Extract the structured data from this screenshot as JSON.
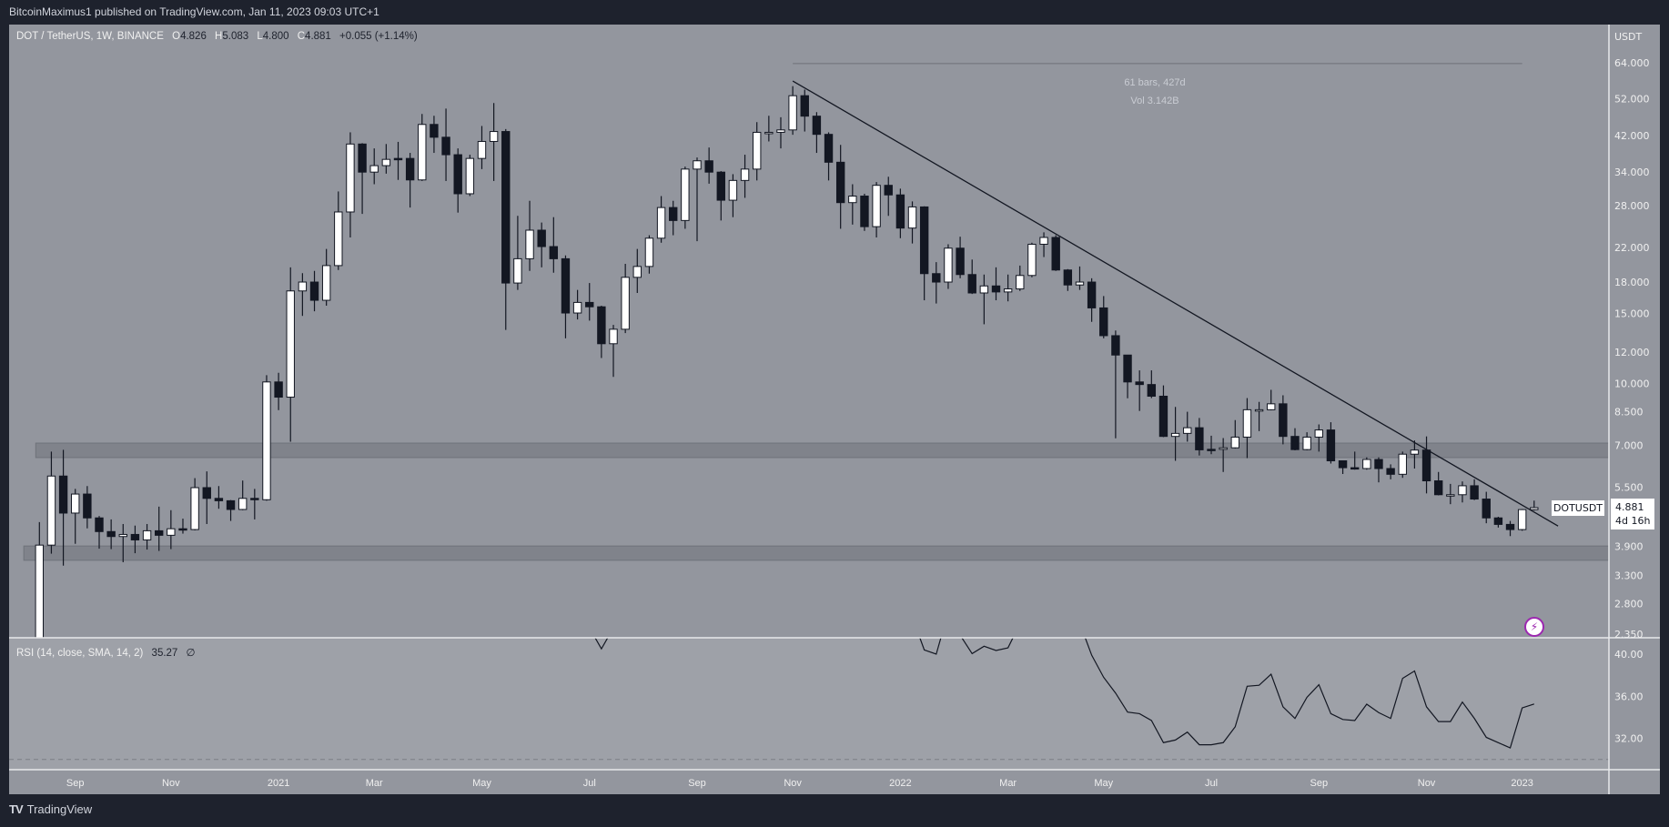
{
  "header": {
    "published": "BitcoinMaximus1 published on TradingView.com, Jan 11, 2023 09:03 UTC+1"
  },
  "legend": {
    "symbol": "DOT / TetherUS, 1W, BINANCE",
    "o_key": "O",
    "o": "4.826",
    "h_key": "H",
    "h": "5.083",
    "l_key": "L",
    "l": "4.800",
    "c_key": "C",
    "c": "4.881",
    "change": "+0.055 (+1.14%)"
  },
  "measure": {
    "bars": "61 bars, 427d",
    "vol": "Vol 3.142B"
  },
  "price_tag": {
    "symbol": "DOTUSDT",
    "price": "4.881",
    "countdown": "4d 16h"
  },
  "rsi_legend": {
    "label": "RSI (14, close, SMA, 14, 2)",
    "value": "35.27",
    "extra": "∅"
  },
  "footer": {
    "logo": "TV",
    "brand": "TradingView"
  },
  "icons": {
    "alert": "lightning-icon"
  },
  "colors": {
    "up": "#ffffff",
    "down": "#131722",
    "pane": "#93969e",
    "rsi_pane": "#9ea1a8",
    "zone": "#80838b",
    "line": "#131722",
    "alert": "#9c27b0"
  },
  "chart_data": {
    "type": "candlestick",
    "title": "DOT / TetherUS, 1W, BINANCE",
    "yscale": "log",
    "currency": "USDT",
    "ylim": [
      2.35,
      64
    ],
    "y_ticks": [
      "64.000",
      "52.000",
      "42.000",
      "34.000",
      "28.000",
      "22.000",
      "18.000",
      "15.000",
      "12.000",
      "10.000",
      "8.500",
      "7.000",
      "5.500",
      "3.900",
      "3.300",
      "2.800",
      "2.350"
    ],
    "x_ticks": [
      {
        "label": "Sep",
        "bar": 4
      },
      {
        "label": "Nov",
        "bar": 12
      },
      {
        "label": "2021",
        "bar": 21
      },
      {
        "label": "Mar",
        "bar": 29
      },
      {
        "label": "May",
        "bar": 38
      },
      {
        "label": "Jul",
        "bar": 47
      },
      {
        "label": "Sep",
        "bar": 56
      },
      {
        "label": "Nov",
        "bar": 64
      },
      {
        "label": "2022",
        "bar": 73
      },
      {
        "label": "Mar",
        "bar": 82
      },
      {
        "label": "May",
        "bar": 90
      },
      {
        "label": "Jul",
        "bar": 99
      },
      {
        "label": "Sep",
        "bar": 108
      },
      {
        "label": "Nov",
        "bar": 117
      },
      {
        "label": "2023",
        "bar": 125
      }
    ],
    "ohlc": [
      [
        2.0,
        4.49,
        2.0,
        3.93
      ],
      [
        3.93,
        6.75,
        3.74,
        5.86
      ],
      [
        5.86,
        6.82,
        3.49,
        4.73
      ],
      [
        4.73,
        5.44,
        3.96,
        5.28
      ],
      [
        5.28,
        5.53,
        4.33,
        4.6
      ],
      [
        4.6,
        4.65,
        3.85,
        4.25
      ],
      [
        4.25,
        4.56,
        3.84,
        4.13
      ],
      [
        4.13,
        4.44,
        3.56,
        4.18
      ],
      [
        4.18,
        4.4,
        3.75,
        4.05
      ],
      [
        4.05,
        4.44,
        3.83,
        4.27
      ],
      [
        4.27,
        4.91,
        3.8,
        4.16
      ],
      [
        4.16,
        4.81,
        3.84,
        4.32
      ],
      [
        4.32,
        4.58,
        4.2,
        4.3
      ],
      [
        4.3,
        5.79,
        4.28,
        5.48
      ],
      [
        5.48,
        6.02,
        4.44,
        5.15
      ],
      [
        5.15,
        5.53,
        4.85,
        5.08
      ],
      [
        5.08,
        5.1,
        4.52,
        4.83
      ],
      [
        4.83,
        5.71,
        4.81,
        5.15
      ],
      [
        5.15,
        5.44,
        4.56,
        5.11
      ],
      [
        5.11,
        10.5,
        5.08,
        10.1
      ],
      [
        10.1,
        10.65,
        8.58,
        9.25
      ],
      [
        9.25,
        19.6,
        7.15,
        17.1
      ],
      [
        17.1,
        18.95,
        14.8,
        18.0
      ],
      [
        18.0,
        19.2,
        15.2,
        16.2
      ],
      [
        16.2,
        21.8,
        15.7,
        19.8
      ],
      [
        19.8,
        30.4,
        19.3,
        27.0
      ],
      [
        27.0,
        42.8,
        23.3,
        40.0
      ],
      [
        40.0,
        40.2,
        26.7,
        34.0
      ],
      [
        34.0,
        39.0,
        31.7,
        35.3
      ],
      [
        35.3,
        40.0,
        33.7,
        36.6
      ],
      [
        36.8,
        40.5,
        32.5,
        36.6
      ],
      [
        36.8,
        38.0,
        27.7,
        32.5
      ],
      [
        32.5,
        47.6,
        32.3,
        44.8
      ],
      [
        44.8,
        47.1,
        38.0,
        41.6
      ],
      [
        41.6,
        49.1,
        32.3,
        37.6
      ],
      [
        37.6,
        39.0,
        26.9,
        30.0
      ],
      [
        30.0,
        37.6,
        29.6,
        36.8
      ],
      [
        36.8,
        44.4,
        34.6,
        40.6
      ],
      [
        40.6,
        50.7,
        32.3,
        43.0
      ],
      [
        43.0,
        43.6,
        13.65,
        17.9
      ],
      [
        17.9,
        26.4,
        17.2,
        20.6
      ],
      [
        20.6,
        28.8,
        19.2,
        24.3
      ],
      [
        24.3,
        25.4,
        19.6,
        22.1
      ],
      [
        22.1,
        26.2,
        19.0,
        20.6
      ],
      [
        20.6,
        21.0,
        13.0,
        15.05
      ],
      [
        15.05,
        17.2,
        14.5,
        16.0
      ],
      [
        16.0,
        17.9,
        14.4,
        15.6
      ],
      [
        15.6,
        15.7,
        11.6,
        12.6
      ],
      [
        12.6,
        14.05,
        10.4,
        13.7
      ],
      [
        13.7,
        20.0,
        13.4,
        18.5
      ],
      [
        18.5,
        21.8,
        16.9,
        19.7
      ],
      [
        19.7,
        23.6,
        18.9,
        23.2
      ],
      [
        23.2,
        29.6,
        22.6,
        27.7
      ],
      [
        27.7,
        28.8,
        23.6,
        25.7
      ],
      [
        25.7,
        35.1,
        24.5,
        34.6
      ],
      [
        34.6,
        37.0,
        22.8,
        36.3
      ],
      [
        36.3,
        39.2,
        31.8,
        34.0
      ],
      [
        34.0,
        34.2,
        25.7,
        28.9
      ],
      [
        28.9,
        33.6,
        26.2,
        32.4
      ],
      [
        32.4,
        37.6,
        29.3,
        34.6
      ],
      [
        34.6,
        45.4,
        32.4,
        42.8
      ],
      [
        42.8,
        47.1,
        40.6,
        42.8
      ],
      [
        42.8,
        46.7,
        39.0,
        43.4
      ],
      [
        43.4,
        55.9,
        42.2,
        52.9
      ],
      [
        52.9,
        54.8,
        43.0,
        47.0
      ],
      [
        47.0,
        48.1,
        38.0,
        42.3
      ],
      [
        42.3,
        42.8,
        32.4,
        36.0
      ],
      [
        36.0,
        39.8,
        24.5,
        28.5
      ],
      [
        28.5,
        31.7,
        25.1,
        29.6
      ],
      [
        29.6,
        30.0,
        24.2,
        24.8
      ],
      [
        24.8,
        32.1,
        23.3,
        31.5
      ],
      [
        31.5,
        33.1,
        26.4,
        29.8
      ],
      [
        29.8,
        30.9,
        23.2,
        24.6
      ],
      [
        24.6,
        28.7,
        22.5,
        27.8
      ],
      [
        27.8,
        27.9,
        16.2,
        18.9
      ],
      [
        18.9,
        20.2,
        15.9,
        18.0
      ],
      [
        18.0,
        22.4,
        17.3,
        21.9
      ],
      [
        21.9,
        23.4,
        18.4,
        18.8
      ],
      [
        18.8,
        20.5,
        16.8,
        16.9
      ],
      [
        16.9,
        18.8,
        14.1,
        17.6
      ],
      [
        17.6,
        19.6,
        16.2,
        17.0
      ],
      [
        17.0,
        18.8,
        16.1,
        17.3
      ],
      [
        17.3,
        19.8,
        17.1,
        18.7
      ],
      [
        18.7,
        22.6,
        18.5,
        22.4
      ],
      [
        22.4,
        24.0,
        20.8,
        23.3
      ],
      [
        23.3,
        23.6,
        19.2,
        19.3
      ],
      [
        19.3,
        19.4,
        17.1,
        17.7
      ],
      [
        17.7,
        19.7,
        17.2,
        18.0
      ],
      [
        18.0,
        18.4,
        14.3,
        15.5
      ],
      [
        15.5,
        16.6,
        13.0,
        13.2
      ],
      [
        13.2,
        13.6,
        7.29,
        11.8
      ],
      [
        11.8,
        11.8,
        9.19,
        10.1
      ],
      [
        10.1,
        10.8,
        8.54,
        9.95
      ],
      [
        9.95,
        10.8,
        9.2,
        9.3
      ],
      [
        9.3,
        9.9,
        7.34,
        7.37
      ],
      [
        7.37,
        8.74,
        6.4,
        7.5
      ],
      [
        7.5,
        8.5,
        7.15,
        7.75
      ],
      [
        7.75,
        8.2,
        6.6,
        6.82
      ],
      [
        6.84,
        7.4,
        6.65,
        6.82
      ],
      [
        6.84,
        7.3,
        6.0,
        6.9
      ],
      [
        6.9,
        8.1,
        6.87,
        7.34
      ],
      [
        7.34,
        9.2,
        6.5,
        8.6
      ],
      [
        8.6,
        9.0,
        7.6,
        8.6
      ],
      [
        8.6,
        9.65,
        8.57,
        8.9
      ],
      [
        8.9,
        9.35,
        7.04,
        7.37
      ],
      [
        7.37,
        7.73,
        6.8,
        6.83
      ],
      [
        6.83,
        7.55,
        6.8,
        7.34
      ],
      [
        7.34,
        7.9,
        6.75,
        7.65
      ],
      [
        7.65,
        8.0,
        6.3,
        6.4
      ],
      [
        6.4,
        6.4,
        5.93,
        6.15
      ],
      [
        6.15,
        6.75,
        6.08,
        6.12
      ],
      [
        6.12,
        6.53,
        6.08,
        6.45
      ],
      [
        6.45,
        6.53,
        5.65,
        6.12
      ],
      [
        6.12,
        6.27,
        5.75,
        5.92
      ],
      [
        5.92,
        6.75,
        5.8,
        6.65
      ],
      [
        6.65,
        7.2,
        6.12,
        6.81
      ],
      [
        6.81,
        7.37,
        5.3,
        5.7
      ],
      [
        5.7,
        6.0,
        5.24,
        5.26
      ],
      [
        5.26,
        5.6,
        4.98,
        5.26
      ],
      [
        5.26,
        5.68,
        5.03,
        5.54
      ],
      [
        5.54,
        5.75,
        5.1,
        5.13
      ],
      [
        5.13,
        5.35,
        4.46,
        4.6
      ],
      [
        4.6,
        4.63,
        4.35,
        4.43
      ],
      [
        4.43,
        4.52,
        4.14,
        4.3
      ],
      [
        4.3,
        4.84,
        4.27,
        4.826
      ],
      [
        4.826,
        5.083,
        4.8,
        4.881
      ]
    ],
    "zones": [
      {
        "name": "resistance-zone",
        "from_bar": 1,
        "low": 6.52,
        "high": 7.09
      },
      {
        "name": "support-zone",
        "from_bar": 0,
        "low": 3.6,
        "high": 3.91
      }
    ],
    "trendline": {
      "start": {
        "bar": 64,
        "price": 57.6
      },
      "end": {
        "bar": 128,
        "price": 4.39
      }
    },
    "measure_range": {
      "from_bar": 64,
      "to_bar": 125,
      "price": 63.7
    },
    "rsi": {
      "ylim": [
        29,
        41.55
      ],
      "y_ticks": [
        "40.00",
        "36.00",
        "32.00"
      ],
      "oversold_level": 30,
      "segments": [
        [
          [
            47,
            42.5
          ],
          [
            48,
            40.5
          ],
          [
            49,
            42.5
          ]
        ],
        [
          [
            74,
            43.5
          ],
          [
            75,
            40.4
          ],
          [
            76,
            40.0
          ],
          [
            77,
            44
          ],
          [
            78,
            41.8
          ],
          [
            79,
            40.05
          ],
          [
            80,
            40.75
          ],
          [
            81,
            40.35
          ],
          [
            82,
            40.6
          ],
          [
            83,
            42.9
          ]
        ],
        [
          [
            88,
            42.95
          ],
          [
            89,
            39.9
          ],
          [
            90,
            37.8
          ],
          [
            91,
            36.3
          ],
          [
            92,
            34.5
          ],
          [
            93,
            34.35
          ],
          [
            94,
            33.7
          ],
          [
            95,
            31.6
          ],
          [
            96,
            31.85
          ],
          [
            97,
            32.6
          ],
          [
            98,
            31.4
          ],
          [
            99,
            31.4
          ],
          [
            100,
            31.6
          ],
          [
            101,
            33.1
          ],
          [
            102,
            36.95
          ],
          [
            103,
            37.05
          ],
          [
            104,
            38.1
          ],
          [
            105,
            35.0
          ],
          [
            106,
            33.9
          ],
          [
            107,
            35.9
          ],
          [
            108,
            37.1
          ],
          [
            109,
            34.35
          ],
          [
            110,
            33.8
          ],
          [
            111,
            33.7
          ],
          [
            112,
            35.25
          ],
          [
            113,
            34.45
          ],
          [
            114,
            33.9
          ],
          [
            115,
            37.7
          ],
          [
            116,
            38.4
          ],
          [
            117,
            35.0
          ],
          [
            118,
            33.6
          ],
          [
            119,
            33.6
          ],
          [
            120,
            35.45
          ],
          [
            121,
            33.9
          ],
          [
            122,
            32.1
          ],
          [
            123,
            31.6
          ],
          [
            124,
            31.1
          ],
          [
            125,
            34.9
          ],
          [
            126,
            35.27
          ]
        ]
      ]
    }
  }
}
